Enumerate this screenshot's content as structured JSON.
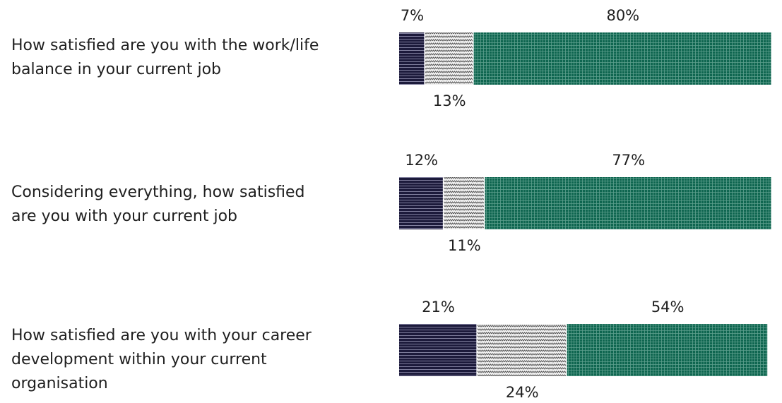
{
  "chart_data": {
    "type": "bar",
    "orientation": "horizontal",
    "stacked": true,
    "categories": [
      "How satisfied are you with the work/life balance in your current job",
      "Considering everything, how satisfied are you with your current job",
      "How satisfied are you with your career development within your current organisation"
    ],
    "category_lines": [
      [
        "How satisfied are you with the work/life",
        "balance in your current job"
      ],
      [
        "Considering everything, how satisfied",
        "are you with your current job"
      ],
      [
        "How satisfied are you with your career",
        "development within your current",
        "organisation"
      ]
    ],
    "series": [
      {
        "values": [
          7,
          12,
          21
        ],
        "color": "#1c1a3b",
        "pattern": "horizontal-lines"
      },
      {
        "values": [
          13,
          11,
          24
        ],
        "color": "#8c8c8c",
        "pattern": "zigzag"
      },
      {
        "values": [
          80,
          77,
          54
        ],
        "color": "#0f6650",
        "pattern": "grid"
      }
    ],
    "value_labels": [
      [
        "7%",
        "13%",
        "80%"
      ],
      [
        "12%",
        "11%",
        "77%"
      ],
      [
        "21%",
        "24%",
        "54%"
      ]
    ],
    "xlim": [
      0,
      100
    ],
    "grid": false,
    "legend": "none",
    "title": "",
    "xlabel": "",
    "ylabel": ""
  }
}
